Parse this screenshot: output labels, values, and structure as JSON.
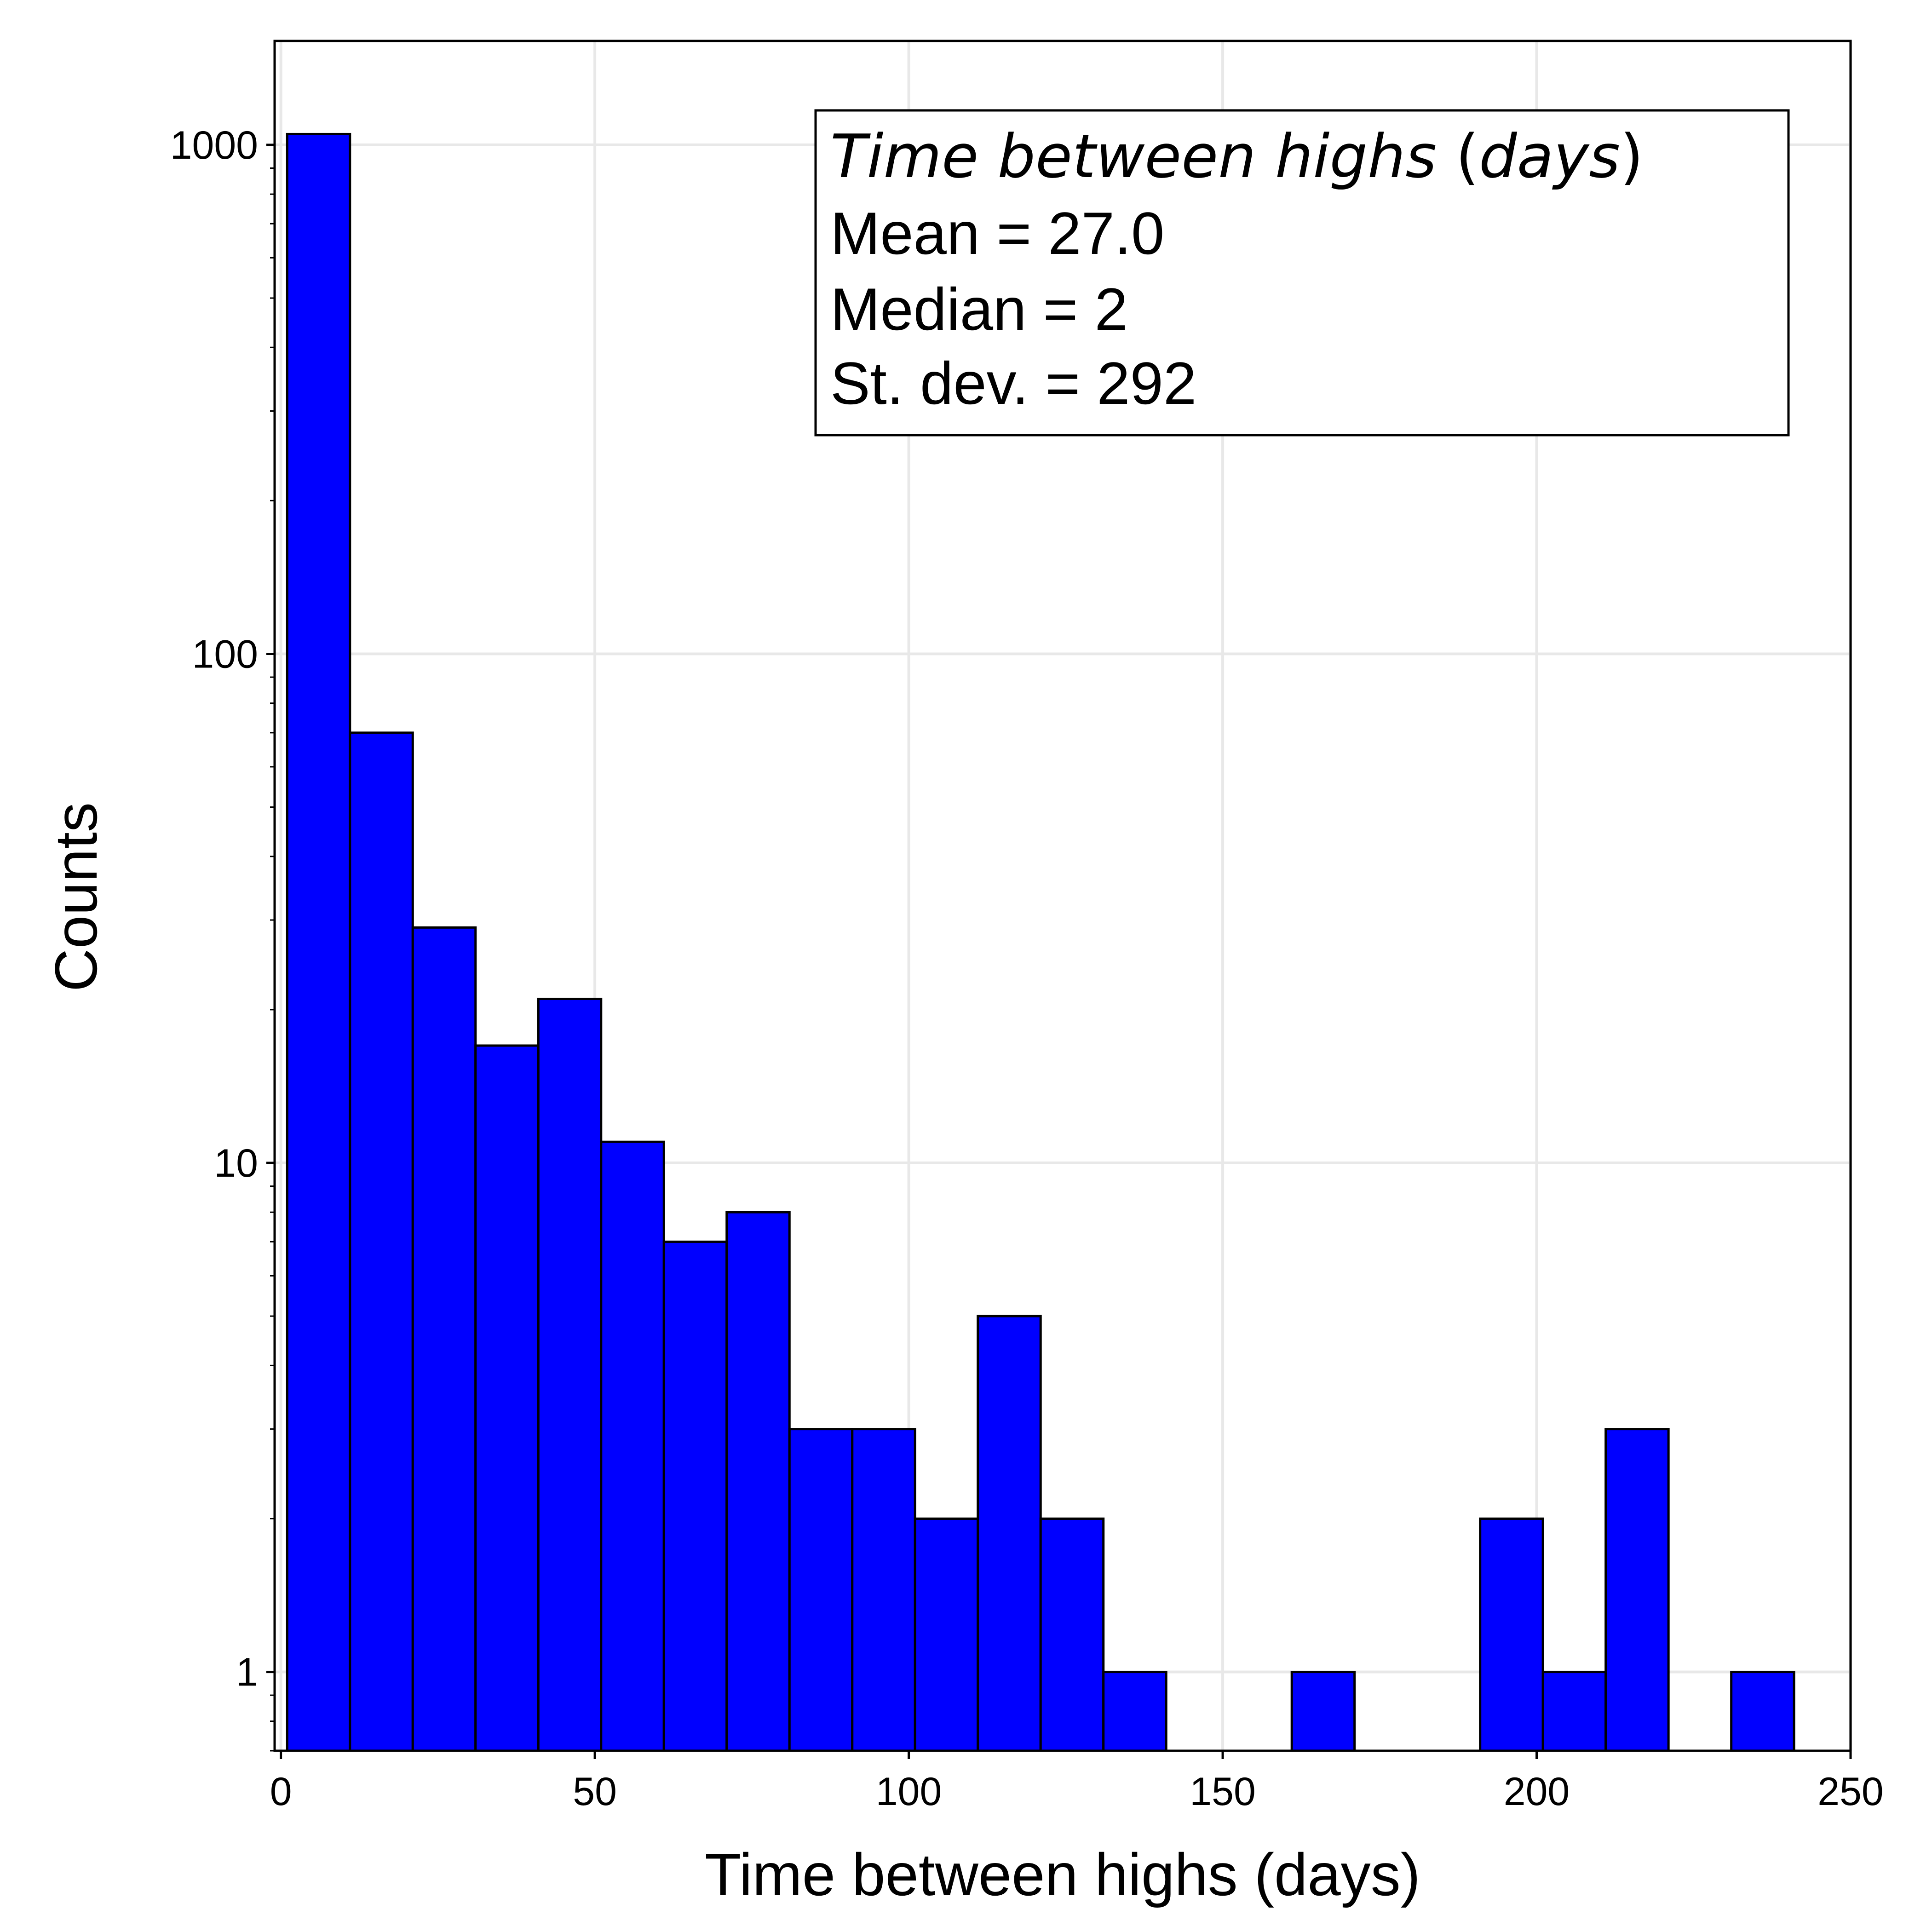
{
  "chart_data": {
    "type": "bar",
    "subtype": "histogram",
    "xlabel": "Time between highs (days)",
    "ylabel": "Counts",
    "xlim": [
      -1,
      250
    ],
    "ylim": [
      0.7,
      1600
    ],
    "yscale": "log",
    "xticks": [
      0,
      50,
      100,
      150,
      200,
      250
    ],
    "xtick_labels": [
      "0",
      "50",
      "100",
      "150",
      "200",
      "250"
    ],
    "yticks": [
      1,
      10,
      100,
      1000
    ],
    "ytick_labels": [
      "1",
      "10",
      "100",
      "1000"
    ],
    "grid": true,
    "bar_color": "#0000ff",
    "edge_color": "#000000",
    "bins": [
      {
        "start": 1,
        "end": 11,
        "count": 1050
      },
      {
        "start": 11,
        "end": 21,
        "count": 70
      },
      {
        "start": 21,
        "end": 31,
        "count": 29
      },
      {
        "start": 31,
        "end": 41,
        "count": 17
      },
      {
        "start": 41,
        "end": 51,
        "count": 21
      },
      {
        "start": 51,
        "end": 61,
        "count": 11
      },
      {
        "start": 61,
        "end": 71,
        "count": 7
      },
      {
        "start": 71,
        "end": 81,
        "count": 8
      },
      {
        "start": 81,
        "end": 91,
        "count": 3
      },
      {
        "start": 91,
        "end": 101,
        "count": 3
      },
      {
        "start": 101,
        "end": 111,
        "count": 2
      },
      {
        "start": 111,
        "end": 121,
        "count": 5
      },
      {
        "start": 121,
        "end": 131,
        "count": 2
      },
      {
        "start": 131,
        "end": 141,
        "count": 1
      },
      {
        "start": 161,
        "end": 171,
        "count": 1
      },
      {
        "start": 191,
        "end": 201,
        "count": 2
      },
      {
        "start": 201,
        "end": 211,
        "count": 1
      },
      {
        "start": 211,
        "end": 221,
        "count": 3
      },
      {
        "start": 231,
        "end": 241,
        "count": 1
      }
    ],
    "annotation": {
      "title_italic_part": "Time between highs",
      "title_paren_open": " (",
      "title_italic_unit": "days",
      "title_paren_close": ")",
      "mean_line": "Mean = 27.0",
      "median_line": "Median = 2",
      "std_line": "St. dev. = 292"
    }
  }
}
